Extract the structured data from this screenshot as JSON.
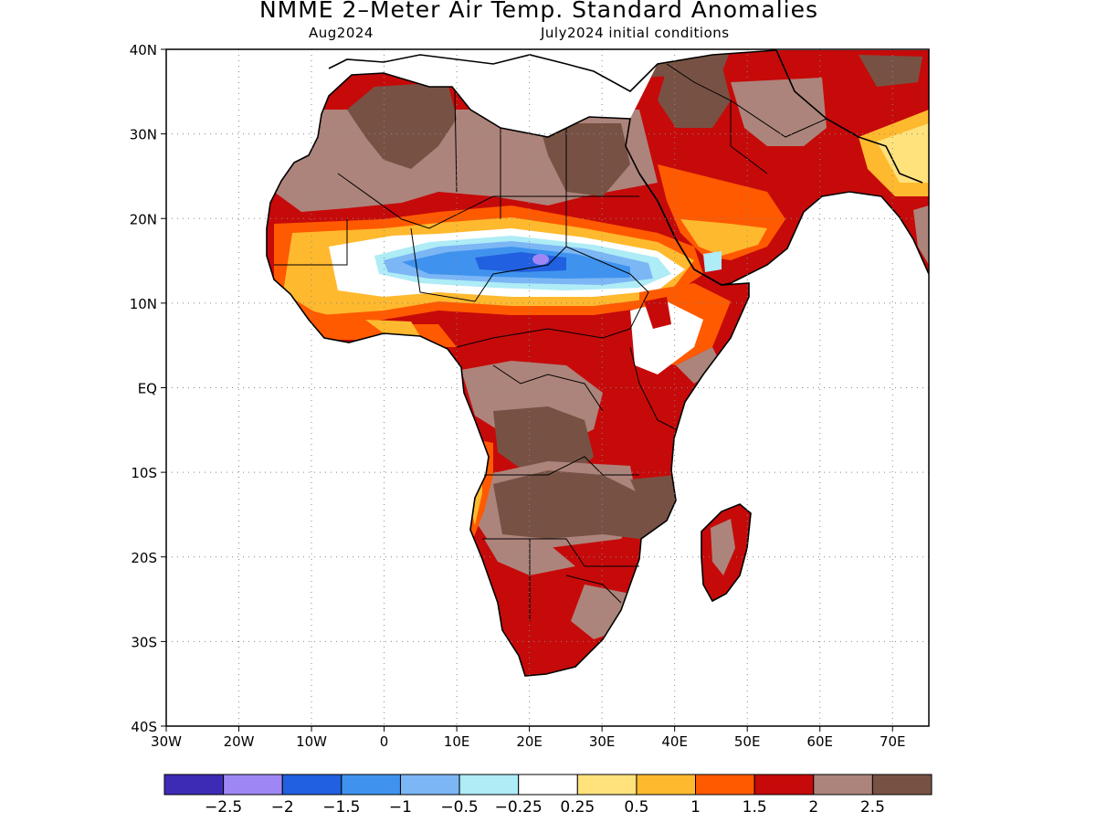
{
  "title": "NMME 2–Meter Air Temp. Standard Anomalies",
  "subtitle_left": "Aug2024",
  "subtitle_right": "July2024 initial conditions",
  "map": {
    "lat_range": [
      -40,
      40
    ],
    "lon_range": [
      -30,
      75
    ],
    "lat_ticks": [
      {
        "value": 40,
        "label": "40N"
      },
      {
        "value": 30,
        "label": "30N"
      },
      {
        "value": 20,
        "label": "20N"
      },
      {
        "value": 10,
        "label": "10N"
      },
      {
        "value": 0,
        "label": "EQ"
      },
      {
        "value": -10,
        "label": "10S"
      },
      {
        "value": -20,
        "label": "20S"
      },
      {
        "value": -30,
        "label": "30S"
      },
      {
        "value": -40,
        "label": "40S"
      }
    ],
    "lon_ticks": [
      {
        "value": -30,
        "label": "30W"
      },
      {
        "value": -20,
        "label": "20W"
      },
      {
        "value": -10,
        "label": "10W"
      },
      {
        "value": 0,
        "label": "0"
      },
      {
        "value": 10,
        "label": "10E"
      },
      {
        "value": 20,
        "label": "20E"
      },
      {
        "value": 30,
        "label": "30E"
      },
      {
        "value": 40,
        "label": "40E"
      },
      {
        "value": 50,
        "label": "50E"
      },
      {
        "value": 60,
        "label": "60E"
      },
      {
        "value": 70,
        "label": "70E"
      }
    ],
    "grid": "dotted"
  },
  "legend": {
    "colors": [
      "#3e2bb5",
      "#9e87f5",
      "#2160e0",
      "#3f93ee",
      "#7cb6f5",
      "#aeecf6",
      "#ffffff",
      "#ffe27c",
      "#ffb92e",
      "#ff5a00",
      "#c60a0a",
      "#ad847b",
      "#775244"
    ],
    "labels": [
      "−2.5",
      "−2",
      "−1.5",
      "−1",
      "−0.5",
      "−0.25",
      "0.25",
      "0.5",
      "1",
      "1.5",
      "2",
      "2.5"
    ]
  }
}
